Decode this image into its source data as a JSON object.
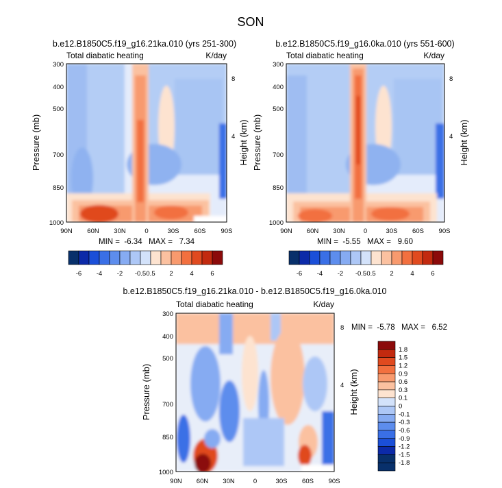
{
  "figure": {
    "title": "SON"
  },
  "chart_data": [
    {
      "type": "heatmap",
      "title": "b.e12.B1850C5.f19_g16.21ka.010 (yrs 251-300)",
      "left_label": "Total diabatic heating",
      "right_label": "K/day",
      "ylabel": "Pressure (mb)",
      "ylabel_right": "Height (km)",
      "x_ticks": [
        "90N",
        "60N",
        "30N",
        "0",
        "30S",
        "60S",
        "90S"
      ],
      "y_ticks": [
        "300",
        "400",
        "500",
        "700",
        "850",
        "1000"
      ],
      "y_ticks_right": [
        "8",
        "4"
      ],
      "xlim": [
        90,
        -90
      ],
      "ylim": [
        1000,
        300
      ],
      "ylog": true,
      "stats": "MIN =  -6.34   MAX =   7.34",
      "colorbar": {
        "orientation": "horizontal",
        "labels": [
          "-6",
          "-4",
          "-2",
          "-0.5",
          "0.5",
          "2",
          "4",
          "6"
        ]
      }
    },
    {
      "type": "heatmap",
      "title": "b.e12.B1850C5.f19_g16.0ka.010 (yrs 551-600)",
      "left_label": "Total diabatic heating",
      "right_label": "K/day",
      "ylabel": "Pressure (mb)",
      "ylabel_right": "Height (km)",
      "x_ticks": [
        "90N",
        "60N",
        "30N",
        "0",
        "30S",
        "60S",
        "90S"
      ],
      "y_ticks": [
        "300",
        "400",
        "500",
        "700",
        "850",
        "1000"
      ],
      "y_ticks_right": [
        "8",
        "4"
      ],
      "xlim": [
        90,
        -90
      ],
      "ylim": [
        1000,
        300
      ],
      "ylog": true,
      "stats": "MIN =  -5.55   MAX =   9.60",
      "colorbar": {
        "orientation": "horizontal",
        "labels": [
          "-6",
          "-4",
          "-2",
          "-0.5",
          "0.5",
          "2",
          "4",
          "6"
        ]
      }
    },
    {
      "type": "heatmap",
      "title": "b.e12.B1850C5.f19_g16.21ka.010 - b.e12.B1850C5.f19_g16.0ka.010",
      "left_label": "Total diabatic heating",
      "right_label": "K/day",
      "ylabel": "Pressure (mb)",
      "ylabel_right": "Height (km)",
      "x_ticks": [
        "90N",
        "60N",
        "30N",
        "0",
        "30S",
        "60S",
        "90S"
      ],
      "y_ticks": [
        "300",
        "400",
        "500",
        "700",
        "850",
        "1000"
      ],
      "y_ticks_right": [
        "8",
        "4"
      ],
      "xlim": [
        90,
        -90
      ],
      "ylim": [
        1000,
        300
      ],
      "ylog": true,
      "stats": "MIN =  -5.78   MAX =   6.52",
      "colorbar": {
        "orientation": "vertical",
        "labels": [
          "1.8",
          "1.5",
          "1.2",
          "0.9",
          "0.6",
          "0.3",
          "0.1",
          "0",
          "-0.1",
          "-0.3",
          "-0.6",
          "-0.9",
          "-1.2",
          "-1.5",
          "-1.8"
        ]
      }
    }
  ],
  "colors": {
    "palette": [
      "#08306b",
      "#0c2aa8",
      "#1b4fd8",
      "#3a6fe6",
      "#5d8ded",
      "#86abf2",
      "#adc7f6",
      "#d3e2fa",
      "#fde3d0",
      "#fbc1a0",
      "#f89a6e",
      "#f2703f",
      "#e04a1f",
      "#c22a0f",
      "#8b0a0a"
    ]
  }
}
